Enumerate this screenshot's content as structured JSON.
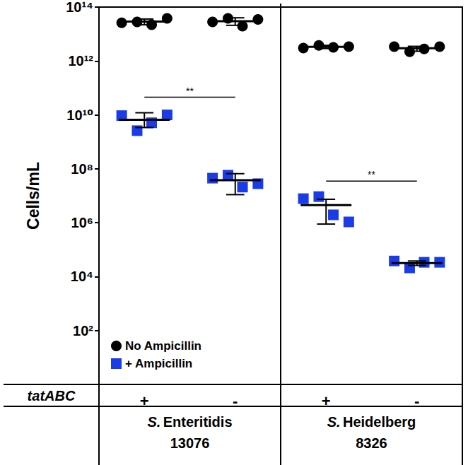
{
  "chart_data": {
    "type": "scatter",
    "y_label": "Cells/mL",
    "x_label": "tatABC",
    "categories": [
      "+",
      "-",
      "+",
      "-"
    ],
    "groups": [
      {
        "name": "S. Enteritidis",
        "strain": "13076",
        "categories": [
          0,
          1
        ]
      },
      {
        "name": "S. Heidelberg",
        "strain": "8326",
        "categories": [
          2,
          3
        ]
      }
    ],
    "log": "y",
    "ylim": [
      1,
      100000000000000
    ],
    "yticks": [
      {
        "value": 100,
        "label": "10²"
      },
      {
        "value": 10000,
        "label": "10⁴"
      },
      {
        "value": 1000000,
        "label": "10⁶"
      },
      {
        "value": 100000000,
        "label": "10⁸"
      },
      {
        "value": 10000000000,
        "label": "10¹⁰"
      },
      {
        "value": 1000000000000,
        "label": "10¹²"
      },
      {
        "value": 100000000000000,
        "label": "10¹⁴"
      }
    ],
    "grid": false,
    "legend": "lower left",
    "series": [
      {
        "name": "No Ampicillin",
        "color": "#000000",
        "marker": "circle",
        "values": [
          [
            26000000000000,
            28000000000000,
            22000000000000,
            38000000000000
          ],
          [
            28000000000000,
            38000000000000,
            19500000000000,
            35000000000000
          ],
          [
            3000000000000,
            3800000000000,
            3200000000000,
            3400000000000
          ],
          [
            3400000000000,
            2200000000000,
            2800000000000,
            3400000000000
          ]
        ],
        "means": [
          29000000000000,
          30000000000000,
          3350000000000,
          2950000000000
        ],
        "error_bars": [
          [
            22000000000000,
            36000000000000
          ],
          [
            21000000000000,
            40000000000000
          ],
          [
            2900000000000,
            3800000000000
          ],
          [
            2300000000000,
            3500000000000
          ]
        ]
      },
      {
        "name": "+ Ampicillin",
        "color": "#1a3be8",
        "marker": "square",
        "values": [
          [
            9400000000,
            2600000000,
            5100000000,
            10000000000
          ],
          [
            45000000,
            58000000,
            21000000,
            28000000
          ],
          [
            7800000,
            9300000,
            1960000,
            1070000
          ],
          [
            38000,
            21000,
            34000,
            34000
          ]
        ],
        "means": [
          6600000000,
          38000000,
          4500000,
          32000
        ],
        "error_bars": [
          [
            3400000000,
            12000000000
          ],
          [
            11000000,
            66000000
          ],
          [
            890000,
            7400000
          ],
          [
            26000,
            38000
          ]
        ]
      }
    ],
    "annotations": [
      {
        "text": "**",
        "series": "+ Ampicillin",
        "between": [
          0,
          1
        ]
      },
      {
        "text": "**",
        "series": "+ Ampicillin",
        "between": [
          2,
          3
        ]
      }
    ]
  }
}
